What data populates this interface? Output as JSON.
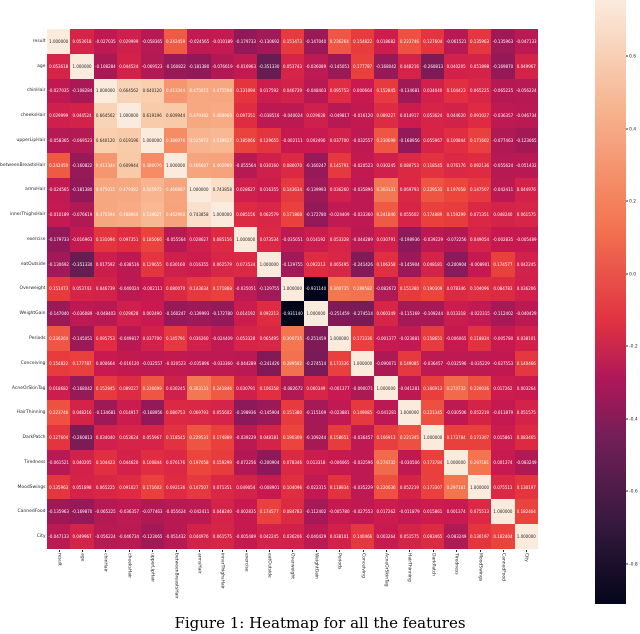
{
  "caption": "Figure 1: Heatmap for all the features",
  "chart_data": {
    "type": "heatmap",
    "title": "",
    "xlabel": "",
    "ylabel": "",
    "labels": [
      "result",
      "age",
      "chinHair",
      "cheeksHair",
      "upperLipHair",
      "betweenBreastsHair",
      "armsHair",
      "innerThighsHair",
      "exercise",
      "eatOutside",
      "Overweight",
      "WeightGain",
      "Periods",
      "Conceiving",
      "AcneOrSkinTag",
      "HairThinning",
      "DarkPatch",
      "Tiredness",
      "MoodSwings",
      "CannedFood",
      "City"
    ],
    "matrix": [
      [
        1.0,
        0.053618,
        -0.027035,
        0.029999,
        -0.058365,
        0.242459,
        -0.024565,
        -0.010189,
        -0.179733,
        -0.130692,
        0.151473,
        -0.14704,
        0.236264,
        0.154822,
        0.018682,
        0.223746,
        0.127604,
        -0.061521,
        0.135963,
        -0.135963,
        -0.047133
      ],
      [
        0.053618,
        1.0,
        -0.108284,
        0.044524,
        -0.069523,
        -0.160822,
        -0.18138,
        -0.076619,
        -0.016963,
        -0.35133,
        0.053743,
        -0.036089,
        -0.145051,
        0.177787,
        -0.168042,
        0.048216,
        -0.260813,
        0.040205,
        0.051898,
        -0.16987,
        0.049967
      ],
      [
        -0.027035,
        -0.108284,
        1.0,
        0.664562,
        0.64012,
        0.413344,
        0.475015,
        0.475594,
        0.131094,
        0.017592,
        0.046739,
        -0.048403,
        0.095753,
        0.000664,
        0.152845,
        -0.134681,
        0.03404,
        0.104423,
        0.065225,
        -0.065225,
        -0.056224
      ],
      [
        0.029999,
        0.044524,
        0.664562,
        1.0,
        0.619196,
        0.609944,
        0.479382,
        0.48896,
        0.097351,
        -0.038516,
        -0.040024,
        0.029628,
        -0.049817,
        -0.01612,
        0.089227,
        0.014917,
        0.053624,
        0.04462,
        0.091027,
        -0.036357,
        -0.046734
      ],
      [
        -0.058365,
        -0.069523,
        0.64012,
        0.619196,
        1.0,
        0.380076,
        0.525972,
        0.539627,
        0.185066,
        0.129655,
        -0.002111,
        0.00249,
        0.0377,
        -0.032557,
        0.230699,
        -0.168956,
        0.055967,
        0.100844,
        0.171602,
        -0.077463,
        -0.123065
      ],
      [
        0.242459,
        -0.160822,
        0.413344,
        0.609944,
        0.380076,
        1.0,
        0.466687,
        0.46296,
        -0.055564,
        0.03016,
        0.08007,
        -0.160247,
        0.145791,
        -0.020523,
        0.030245,
        0.080753,
        0.118545,
        0.076176,
        0.092136,
        -0.055624,
        -0.051432
      ],
      [
        -0.024565,
        -0.18138,
        0.475015,
        0.479382,
        0.525972,
        0.466687,
        1.0,
        0.743858,
        0.028627,
        0.016355,
        0.143634,
        -0.139993,
        0.03626,
        -0.035896,
        0.303131,
        0.069793,
        0.229531,
        0.197058,
        0.147507,
        -0.042411,
        0.044976
      ],
      [
        -0.010189,
        -0.076619,
        0.475594,
        0.48896,
        0.539627,
        0.46296,
        0.743858,
        1.0,
        0.085156,
        0.062579,
        0.171868,
        -0.17278,
        -0.024409,
        -0.03336,
        0.241846,
        0.055602,
        0.174889,
        0.159299,
        0.071351,
        0.04824,
        0.061575
      ],
      [
        -0.179733,
        -0.016963,
        0.131094,
        0.097351,
        0.185066,
        -0.055564,
        0.028627,
        0.085156,
        1.0,
        0.073534,
        -0.035051,
        0.014192,
        0.053328,
        -0.044289,
        0.030791,
        -0.198936,
        -0.039229,
        -0.072256,
        0.049054,
        -0.002835,
        -0.005489
      ],
      [
        -0.130692,
        -0.35133,
        0.017592,
        -0.038516,
        0.129655,
        0.03016,
        0.016355,
        0.062579,
        0.073534,
        1.0,
        -0.129755,
        0.092213,
        0.065495,
        -0.241426,
        0.106358,
        -0.145904,
        0.048181,
        -0.200904,
        -0.008901,
        0.174577,
        0.042245
      ],
      [
        0.151473,
        0.053743,
        0.046739,
        -0.040024,
        -0.002111,
        0.08007,
        0.143634,
        0.171868,
        -0.035051,
        -0.129755,
        1.0,
        -0.93114,
        0.300735,
        0.289582,
        -0.082672,
        0.15138,
        0.190309,
        0.078346,
        0.104096,
        0.084783,
        0.036206
      ],
      [
        -0.14704,
        -0.036089,
        -0.048403,
        0.029628,
        0.00249,
        -0.160247,
        -0.139993,
        -0.17278,
        0.014192,
        0.092213,
        -0.93114,
        1.0,
        -0.251459,
        -0.274514,
        0.060349,
        -0.115169,
        -0.109244,
        0.013318,
        -0.022315,
        -0.112402,
        -0.040429
      ],
      [
        0.236264,
        -0.145051,
        0.095753,
        -0.049817,
        0.0377,
        0.145791,
        0.03626,
        -0.024409,
        0.053328,
        0.065495,
        0.300735,
        -0.251459,
        1.0,
        0.173336,
        -0.001377,
        -0.023881,
        0.158651,
        -0.006065,
        0.118834,
        -0.00578,
        0.038101
      ],
      [
        0.154822,
        0.177787,
        0.000664,
        -0.01612,
        -0.032557,
        -0.020523,
        -0.035896,
        -0.03336,
        -0.044289,
        -0.241426,
        0.289582,
        -0.274514,
        0.173336,
        1.0,
        -0.090071,
        0.149085,
        -0.036457,
        -0.032596,
        -0.035229,
        -0.027553,
        0.140466
      ],
      [
        0.018682,
        -0.168042,
        0.152845,
        0.089227,
        0.230699,
        0.030245,
        0.303131,
        0.241846,
        0.030791,
        0.106358,
        -0.082672,
        0.060349,
        -0.001377,
        -0.090071,
        1.0,
        -0.041281,
        0.166913,
        0.274732,
        0.220036,
        0.017262,
        0.003264
      ],
      [
        0.223746,
        0.048216,
        -0.134681,
        0.014917,
        -0.168956,
        0.080753,
        0.069793,
        0.055602,
        -0.198936,
        -0.145904,
        0.15138,
        -0.115169,
        -0.023881,
        0.149085,
        -0.041281,
        1.0,
        0.221345,
        -0.030506,
        0.052219,
        -0.011879,
        0.051575
      ],
      [
        0.127604,
        -0.260813,
        0.03404,
        0.053624,
        0.055967,
        0.118545,
        0.229531,
        0.174889,
        -0.039229,
        0.048181,
        0.190309,
        -0.109244,
        0.158651,
        -0.036457,
        0.166913,
        0.221345,
        1.0,
        0.173784,
        0.173307,
        0.015861,
        0.083465
      ],
      [
        -0.061521,
        0.040205,
        0.104423,
        0.04462,
        0.100844,
        0.076176,
        0.197058,
        0.159299,
        -0.072256,
        -0.200904,
        0.078346,
        0.013318,
        -0.006065,
        -0.032596,
        0.274732,
        -0.030506,
        0.173784,
        1.0,
        0.297181,
        0.001374,
        -0.083249
      ],
      [
        0.135963,
        0.051898,
        0.065225,
        0.091027,
        0.171602,
        0.092136,
        0.147507,
        0.071351,
        0.049054,
        -0.008901,
        0.104096,
        -0.022315,
        0.118834,
        -0.035229,
        0.220036,
        0.052219,
        0.173307,
        0.297181,
        1.0,
        0.075513,
        0.130197
      ],
      [
        -0.135963,
        -0.16987,
        -0.065225,
        -0.036357,
        -0.077463,
        -0.055624,
        -0.042411,
        0.04824,
        -0.002835,
        0.174577,
        0.084783,
        -0.112402,
        -0.00578,
        -0.027553,
        0.017262,
        -0.011879,
        0.015861,
        0.001374,
        0.075513,
        1.0,
        0.182404
      ],
      [
        -0.047133,
        0.049967,
        -0.056224,
        -0.046734,
        -0.123065,
        -0.051432,
        0.044976,
        0.061575,
        -0.005489,
        0.042245,
        0.036206,
        -0.040429,
        0.038101,
        0.140466,
        0.003264,
        0.051575,
        0.083465,
        -0.083249,
        0.130197,
        0.182404,
        1.0
      ]
    ],
    "colorbar": {
      "ticks": [
        "0.6",
        "0.4",
        "0.2",
        "0.0",
        "-0.2",
        "-0.4",
        "-0.6",
        "-0.8"
      ],
      "range": [
        -0.93114,
        1.0
      ],
      "colormap": "rocket"
    },
    "legend_position": "right"
  }
}
